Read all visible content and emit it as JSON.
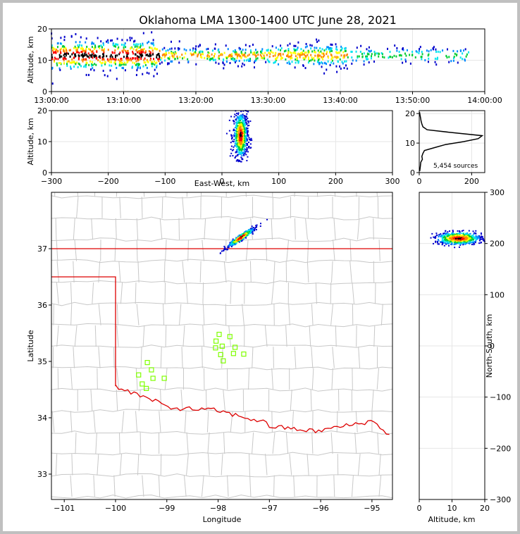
{
  "chart_data": {
    "title": "Oklahoma LMA 1300-1400 UTC June 28, 2021",
    "panels": [
      {
        "type": "scatter",
        "name": "altitude-vs-time",
        "xlabel": "",
        "ylabel": "Altitude, km",
        "xlim": [
          0,
          60
        ],
        "ylim": [
          0,
          20
        ],
        "x_ticks": [
          "13:00:00",
          "13:10:00",
          "13:20:00",
          "13:30:00",
          "13:40:00",
          "13:50:00",
          "14:00:00"
        ],
        "y_ticks": [
          "0",
          "10",
          "20"
        ],
        "clusters": [
          {
            "x": [
              0,
              15
            ],
            "y": [
              7,
              16
            ]
          },
          {
            "x": [
              15,
              30
            ],
            "y": [
              9,
              14
            ]
          },
          {
            "x": [
              30,
              41
            ],
            "y": [
              8,
              15
            ]
          },
          {
            "x": [
              41,
              58
            ],
            "y": [
              9,
              14
            ]
          }
        ]
      },
      {
        "type": "scatter",
        "name": "altitude-vs-east-west",
        "xlabel": "East-West, km",
        "ylabel": "Altitude, km",
        "xlim": [
          -300,
          300
        ],
        "ylim": [
          0,
          20
        ],
        "x_ticks": [
          "−300",
          "−200",
          "−100",
          "0",
          "100",
          "200",
          "300"
        ],
        "y_ticks": [
          "0",
          "10",
          "20"
        ],
        "center": {
          "x": 33,
          "y": 12
        }
      },
      {
        "type": "line",
        "name": "altitude-histogram",
        "xlim": [
          0,
          250
        ],
        "ylim": [
          0,
          21
        ],
        "x_ticks": [
          "0",
          "200"
        ],
        "y_ticks": [
          "0",
          "10",
          "20"
        ],
        "profile": [
          {
            "y": 0.5,
            "x": 2
          },
          {
            "y": 2,
            "x": 4
          },
          {
            "y": 3.5,
            "x": 6
          },
          {
            "y": 4.5,
            "x": 12
          },
          {
            "y": 5.5,
            "x": 10
          },
          {
            "y": 6.5,
            "x": 14
          },
          {
            "y": 7.5,
            "x": 20
          },
          {
            "y": 8.5,
            "x": 60
          },
          {
            "y": 9.5,
            "x": 100
          },
          {
            "y": 10.5,
            "x": 170
          },
          {
            "y": 11.5,
            "x": 225
          },
          {
            "y": 12.5,
            "x": 240
          },
          {
            "y": 13.5,
            "x": 130
          },
          {
            "y": 14.5,
            "x": 30
          },
          {
            "y": 15.5,
            "x": 14
          },
          {
            "y": 16.5,
            "x": 10
          },
          {
            "y": 17.5,
            "x": 7
          },
          {
            "y": 18.5,
            "x": 5
          },
          {
            "y": 19.5,
            "x": 3
          },
          {
            "y": 20.5,
            "x": 1
          }
        ],
        "annotation": "5,454 sources"
      },
      {
        "type": "map",
        "name": "plan-view",
        "xlabel": "Longitude",
        "ylabel": "Latitude",
        "xlim": [
          -101.25,
          -94.6
        ],
        "ylim": [
          32.55,
          38.0
        ],
        "x_ticks": [
          "−101",
          "−100",
          "−99",
          "−98",
          "−97",
          "−96",
          "−95"
        ],
        "y_ticks": [
          "33",
          "34",
          "35",
          "36",
          "37"
        ],
        "storm_center": {
          "lon": -97.55,
          "lat": 37.2
        },
        "stations": [
          {
            "lon": -99.38,
            "lat": 34.98
          },
          {
            "lon": -99.3,
            "lat": 34.85
          },
          {
            "lon": -99.55,
            "lat": 34.76
          },
          {
            "lon": -99.27,
            "lat": 34.7
          },
          {
            "lon": -99.05,
            "lat": 34.7
          },
          {
            "lon": -99.48,
            "lat": 34.6
          },
          {
            "lon": -99.4,
            "lat": 34.52
          },
          {
            "lon": -97.98,
            "lat": 35.48
          },
          {
            "lon": -97.77,
            "lat": 35.44
          },
          {
            "lon": -98.04,
            "lat": 35.36
          },
          {
            "lon": -97.92,
            "lat": 35.27
          },
          {
            "lon": -98.05,
            "lat": 35.24
          },
          {
            "lon": -97.67,
            "lat": 35.25
          },
          {
            "lon": -97.7,
            "lat": 35.14
          },
          {
            "lon": -97.95,
            "lat": 35.12
          },
          {
            "lon": -97.5,
            "lat": 35.13
          },
          {
            "lon": -97.9,
            "lat": 35.01
          }
        ]
      },
      {
        "type": "scatter",
        "name": "north-south-vs-altitude",
        "xlabel": "Altitude, km",
        "ylabel": "North-South, km",
        "xlim": [
          0,
          20
        ],
        "ylim": [
          -300,
          300
        ],
        "x_ticks": [
          "0",
          "10",
          "20"
        ],
        "y_ticks": [
          "−300",
          "−200",
          "−100",
          "0",
          "100",
          "200",
          "300"
        ],
        "center": {
          "x": 12,
          "y": 210
        }
      }
    ],
    "colors": {
      "state_border": "#dd0000",
      "county_lines": "#c8c8c8",
      "stations": "#7fff00",
      "density_scale": [
        "#0000cc",
        "#0088ff",
        "#00e5ee",
        "#00cc33",
        "#ffff00",
        "#ff8800",
        "#ff0000",
        "#000000"
      ]
    }
  }
}
